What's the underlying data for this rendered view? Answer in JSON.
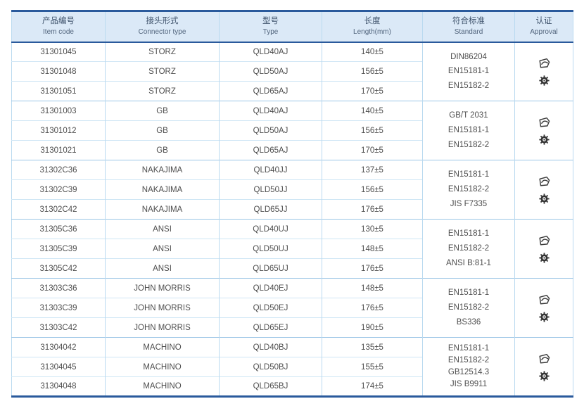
{
  "colors": {
    "border_dark_blue": "#2a5a9c",
    "header_bg": "#dbe9f7",
    "row_line": "#cfe6f5",
    "group_line": "#9cc6e6",
    "column_line": "#badaf0",
    "text": "#4e4e4e"
  },
  "table": {
    "columns": [
      {
        "zh": "产品编号",
        "en": "Item code"
      },
      {
        "zh": "接头形式",
        "en": "Connector type"
      },
      {
        "zh": "型号",
        "en": "Type"
      },
      {
        "zh": "长度",
        "en": "Length(mm)"
      },
      {
        "zh": "符合标准",
        "en": "Standard"
      },
      {
        "zh": "认证",
        "en": "Approval"
      }
    ],
    "groups": [
      {
        "rows": [
          {
            "item_code": "31301045",
            "connector_type": "STORZ",
            "type": "QLD40AJ",
            "length": "140±5"
          },
          {
            "item_code": "31301048",
            "connector_type": "STORZ",
            "type": "QLD50AJ",
            "length": "156±5"
          },
          {
            "item_code": "31301051",
            "connector_type": "STORZ",
            "type": "QLD65AJ",
            "length": "170±5"
          }
        ],
        "standards": [
          "DIN86204",
          "EN15181-1",
          "EN15182-2"
        ],
        "approval_icons": [
          "certification-logo",
          "wheelmark"
        ]
      },
      {
        "rows": [
          {
            "item_code": "31301003",
            "connector_type": "GB",
            "type": "QLD40AJ",
            "length": "140±5"
          },
          {
            "item_code": "31301012",
            "connector_type": "GB",
            "type": "QLD50AJ",
            "length": "156±5"
          },
          {
            "item_code": "31301021",
            "connector_type": "GB",
            "type": "QLD65AJ",
            "length": "170±5"
          }
        ],
        "standards": [
          "GB/T 2031",
          "EN15181-1",
          "EN15182-2"
        ],
        "approval_icons": [
          "certification-logo",
          "wheelmark"
        ]
      },
      {
        "rows": [
          {
            "item_code": "31302C36",
            "connector_type": "NAKAJIMA",
            "type": "QLD40JJ",
            "length": "137±5"
          },
          {
            "item_code": "31302C39",
            "connector_type": "NAKAJIMA",
            "type": "QLD50JJ",
            "length": "156±5"
          },
          {
            "item_code": "31302C42",
            "connector_type": "NAKAJIMA",
            "type": "QLD65JJ",
            "length": "176±5"
          }
        ],
        "standards": [
          "EN15181-1",
          "EN15182-2",
          "JIS F7335"
        ],
        "approval_icons": [
          "certification-logo",
          "wheelmark"
        ]
      },
      {
        "rows": [
          {
            "item_code": "31305C36",
            "connector_type": "ANSI",
            "type": "QLD40UJ",
            "length": "130±5"
          },
          {
            "item_code": "31305C39",
            "connector_type": "ANSI",
            "type": "QLD50UJ",
            "length": "148±5"
          },
          {
            "item_code": "31305C42",
            "connector_type": "ANSI",
            "type": "QLD65UJ",
            "length": "176±5"
          }
        ],
        "standards": [
          "EN15181-1",
          "EN15182-2",
          "ANSI B:81-1"
        ],
        "approval_icons": [
          "certification-logo",
          "wheelmark"
        ]
      },
      {
        "rows": [
          {
            "item_code": "31303C36",
            "connector_type": "JOHN MORRIS",
            "type": "QLD40EJ",
            "length": "148±5"
          },
          {
            "item_code": "31303C39",
            "connector_type": "JOHN MORRIS",
            "type": "QLD50EJ",
            "length": "176±5"
          },
          {
            "item_code": "31303C42",
            "connector_type": "JOHN MORRIS",
            "type": "QLD65EJ",
            "length": "190±5"
          }
        ],
        "standards": [
          "EN15181-1",
          "EN15182-2",
          "BS336"
        ],
        "approval_icons": [
          "certification-logo",
          "wheelmark"
        ]
      },
      {
        "rows": [
          {
            "item_code": "31304042",
            "connector_type": "MACHINO",
            "type": "QLD40BJ",
            "length": "135±5"
          },
          {
            "item_code": "31304045",
            "connector_type": "MACHINO",
            "type": "QLD50BJ",
            "length": "155±5"
          },
          {
            "item_code": "31304048",
            "connector_type": "MACHINO",
            "type": "QLD65BJ",
            "length": "174±5"
          }
        ],
        "standards": [
          "EN15181-1",
          "EN15182-2",
          "GB12514.3",
          "JIS B9911"
        ],
        "approval_icons": [
          "certification-logo",
          "wheelmark"
        ]
      }
    ]
  }
}
